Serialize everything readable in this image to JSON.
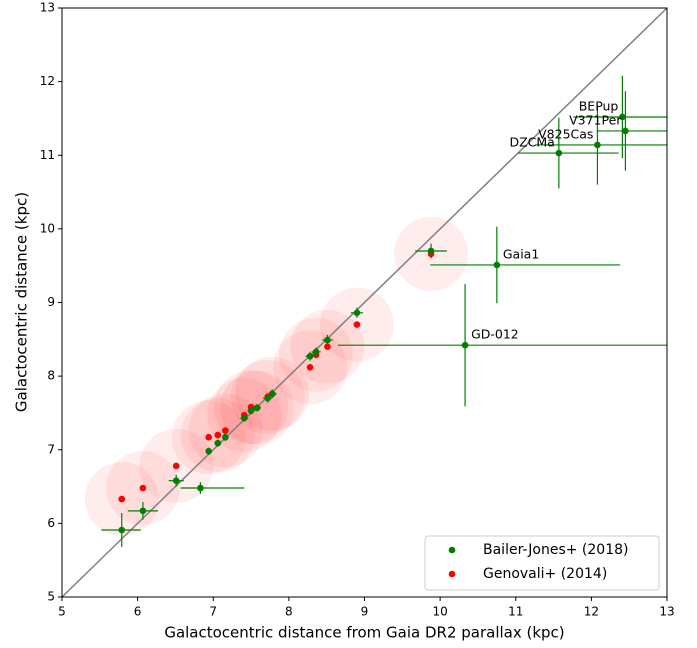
{
  "chart_data": {
    "type": "scatter",
    "xlabel": "Galactocentric distance from Gaia DR2 parallax (kpc)",
    "ylabel": "Galactocentric distance (kpc)",
    "xlim": [
      5,
      13
    ],
    "ylim": [
      5,
      13
    ],
    "xticks": [
      5,
      6,
      7,
      8,
      9,
      10,
      11,
      12,
      13
    ],
    "yticks": [
      5,
      6,
      7,
      8,
      9,
      10,
      11,
      12,
      13
    ],
    "legend": "lower right",
    "reference_line": {
      "x": [
        5,
        13
      ],
      "y": [
        5,
        13
      ],
      "color": "#808080"
    },
    "series": [
      {
        "name": "Bailer-Jones+ (2018)",
        "color": "#008000",
        "x": [
          5.79,
          6.07,
          6.51,
          6.83,
          6.94,
          7.06,
          7.16,
          7.41,
          7.5,
          7.58,
          7.72,
          7.78,
          8.28,
          8.36,
          8.51,
          8.9,
          9.88,
          10.75,
          10.33,
          11.57,
          12.08,
          12.45,
          12.41
        ],
        "values": [
          5.91,
          6.17,
          6.58,
          6.48,
          6.98,
          7.09,
          7.17,
          7.43,
          7.53,
          7.57,
          7.7,
          7.76,
          8.27,
          8.33,
          8.49,
          8.86,
          9.7,
          9.51,
          8.42,
          11.03,
          11.14,
          11.33,
          11.52
        ],
        "xerr": [
          [
            0.27,
            0.25
          ],
          [
            0.2,
            0.2
          ],
          [
            0.1,
            0.1
          ],
          [
            0.26,
            0.58
          ],
          [
            0.04,
            0.04
          ],
          [
            0.04,
            0.04
          ],
          [
            0.04,
            0.04
          ],
          [
            0.05,
            0.05
          ],
          [
            0.05,
            0.05
          ],
          [
            0.05,
            0.05
          ],
          [
            0.06,
            0.06
          ],
          [
            0.06,
            0.06
          ],
          [
            0.06,
            0.06
          ],
          [
            0.06,
            0.06
          ],
          [
            0.07,
            0.07
          ],
          [
            0.08,
            0.08
          ],
          [
            0.21,
            0.21
          ],
          [
            0.88,
            1.63
          ],
          [
            1.68,
            3.0
          ],
          [
            0.54,
            0.79
          ],
          [
            0.82,
            1.2
          ],
          [
            0.38,
            1.0
          ],
          [
            0.65,
            1.0
          ]
        ],
        "yerr": [
          0.23,
          0.12,
          0.08,
          0.08,
          0.05,
          0.05,
          0.05,
          0.05,
          0.05,
          0.05,
          0.06,
          0.06,
          0.06,
          0.06,
          0.07,
          0.07,
          0.1,
          0.52,
          0.83,
          0.48,
          0.54,
          0.54,
          0.56
        ],
        "point_labels": [
          null,
          null,
          null,
          null,
          null,
          null,
          null,
          null,
          null,
          null,
          null,
          null,
          null,
          null,
          null,
          null,
          null,
          "Gaia1",
          "GD-012",
          "DZCMa",
          "V825Cas",
          "V371Per",
          "BEPup"
        ]
      },
      {
        "name": "Genovali+ (2014)",
        "color": "#ff0000",
        "x": [
          5.79,
          6.07,
          6.51,
          6.94,
          7.06,
          7.16,
          7.41,
          7.5,
          7.58,
          7.72,
          7.78,
          8.28,
          8.36,
          8.51,
          8.9,
          9.88
        ],
        "values": [
          6.33,
          6.48,
          6.78,
          7.17,
          7.2,
          7.26,
          7.47,
          7.58,
          7.57,
          7.72,
          7.76,
          8.12,
          8.29,
          8.4,
          8.7,
          9.66
        ]
      }
    ]
  }
}
